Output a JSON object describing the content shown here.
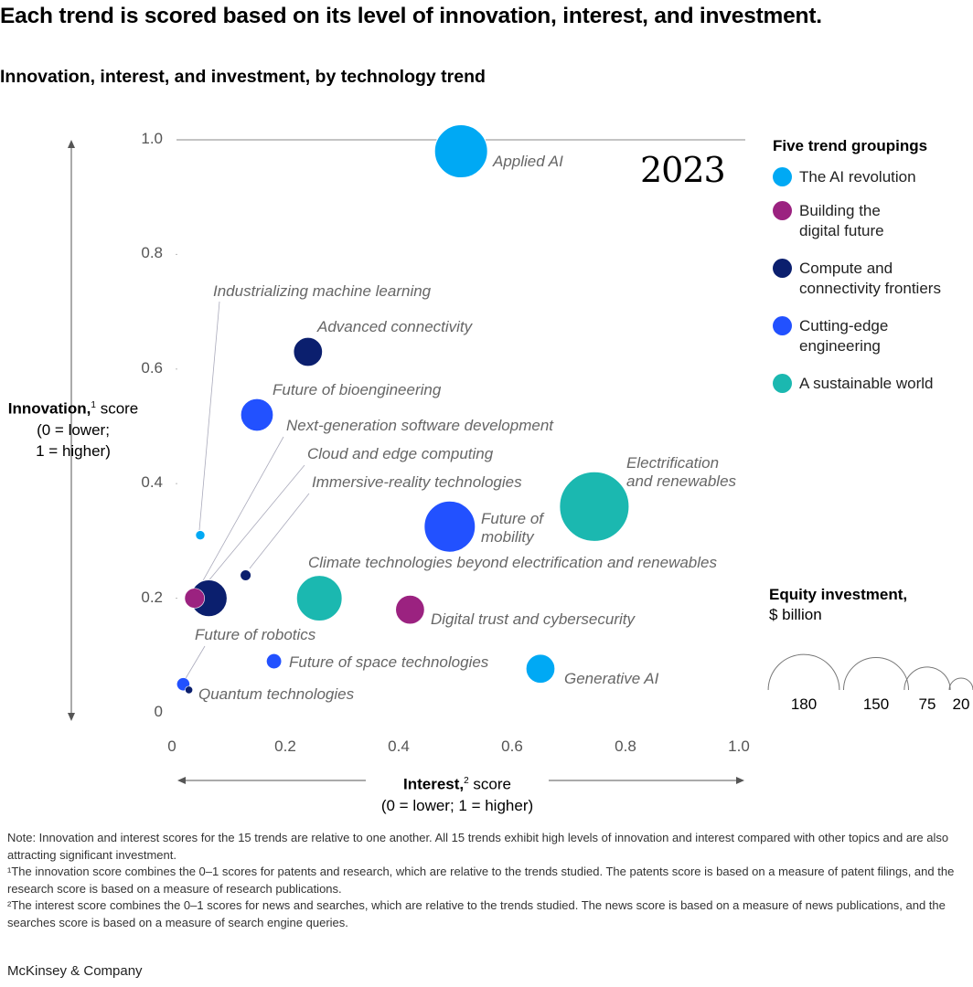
{
  "title": "Each trend is scored based on its level of innovation, interest, and investment.",
  "subtitle": "Innovation, interest, and investment, by technology trend",
  "chart_data": {
    "type": "scatter",
    "subtype": "bubble",
    "year": "2023",
    "x_axis": {
      "label": "Interest,",
      "footnote": "2",
      "label_rest": "score",
      "sublabel": "(0 = lower; 1 = higher)",
      "range": [
        0,
        1
      ],
      "ticks": [
        "0",
        "0.2",
        "0.4",
        "0.6",
        "0.8",
        "1.0"
      ]
    },
    "y_axis": {
      "label": "Innovation,",
      "footnote": "1",
      "label_rest": "score",
      "sublabel_1": "(0 = lower;",
      "sublabel_2": "1 = higher)",
      "range": [
        0,
        1
      ],
      "ticks": [
        "0",
        "0.2",
        "0.4",
        "0.6",
        "0.8",
        "1.0"
      ]
    },
    "grid": false,
    "legend": {
      "title": "Five trend groupings",
      "placement": "right",
      "groups": [
        {
          "name": "The AI revolution",
          "color": "#00A9F4"
        },
        {
          "name": "Building the\ndigital future",
          "color": "#9B2280"
        },
        {
          "name": "Compute and\nconnectivity frontiers",
          "color": "#0B1F6E"
        },
        {
          "name": "Cutting-edge\nengineering",
          "color": "#2251FF"
        },
        {
          "name": "A sustainable world",
          "color": "#1BB8B0"
        }
      ]
    },
    "size_legend": {
      "title": "Equity investment,",
      "unit": "$ billion",
      "values": [
        180,
        150,
        75,
        20
      ]
    },
    "points": [
      {
        "name": "Applied AI",
        "group": 0,
        "interest": 0.51,
        "innovation": 0.98,
        "investment": 100
      },
      {
        "name": "Industrializing machine learning",
        "group": 0,
        "interest": 0.05,
        "innovation": 0.31,
        "investment": 3
      },
      {
        "name": "Advanced connectivity",
        "group": 2,
        "interest": 0.24,
        "innovation": 0.63,
        "investment": 30
      },
      {
        "name": "Future of  bioengineering",
        "group": 3,
        "interest": 0.15,
        "innovation": 0.52,
        "investment": 38
      },
      {
        "name": "Next-generation software development",
        "group": 1,
        "interest": 0.04,
        "innovation": 0.2,
        "investment": 14
      },
      {
        "name": "Cloud and edge computing",
        "group": 2,
        "interest": 0.065,
        "innovation": 0.2,
        "investment": 48
      },
      {
        "name": "Immersive-reality technologies",
        "group": 2,
        "interest": 0.13,
        "innovation": 0.24,
        "investment": 4
      },
      {
        "name": "Electrification\nand renewables",
        "group": 4,
        "interest": 0.745,
        "innovation": 0.36,
        "investment": 172
      },
      {
        "name": "Future of\nmobility",
        "group": 3,
        "interest": 0.49,
        "innovation": 0.325,
        "investment": 93
      },
      {
        "name": "Climate technologies beyond electrification and renewables",
        "group": 4,
        "interest": 0.26,
        "innovation": 0.2,
        "investment": 74
      },
      {
        "name": "Digital trust and cybersecurity",
        "group": 1,
        "interest": 0.42,
        "innovation": 0.18,
        "investment": 30
      },
      {
        "name": "Future of space technologies",
        "group": 3,
        "interest": 0.18,
        "innovation": 0.09,
        "investment": 8
      },
      {
        "name": "Generative AI",
        "group": 0,
        "interest": 0.65,
        "innovation": 0.077,
        "investment": 30
      },
      {
        "name": "Future of robotics",
        "group": 3,
        "interest": 0.02,
        "innovation": 0.05,
        "investment": 6
      },
      {
        "name": "Quantum technologies",
        "group": 2,
        "interest": 0.03,
        "innovation": 0.04,
        "investment": 2
      }
    ]
  },
  "notes": [
    "Note: Innovation and interest scores for the 15 trends are relative to one another. All 15 trends exhibit high levels of innovation and interest compared with other topics and are also attracting significant investment.",
    "¹The innovation score combines the 0–1 scores for patents and research, which are relative to the trends studied. The patents score is based on a measure of patent filings, and the research score is based on a measure of research publications.",
    "²The interest score combines the 0–1 scores for news and searches, which are relative to the trends studied. The news score is based on a measure of news publications, and the searches score is based on a measure of search engine queries."
  ],
  "footer": "McKinsey & Company"
}
